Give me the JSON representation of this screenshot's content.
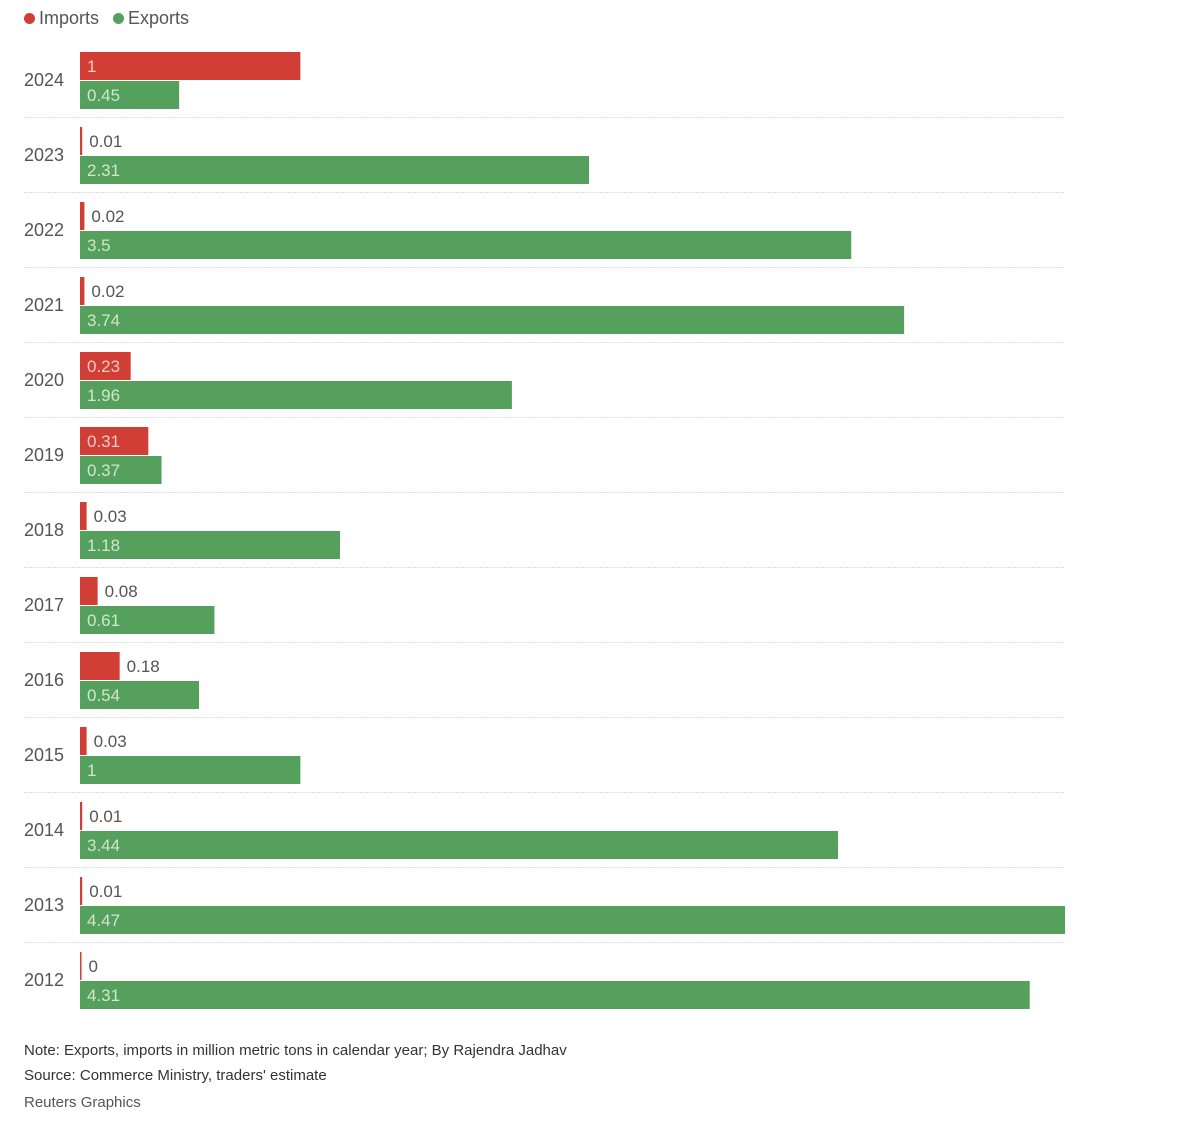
{
  "chart_data": {
    "type": "bar",
    "orientation": "horizontal",
    "title": "",
    "xlabel": "",
    "ylabel": "",
    "units": "million metric tons",
    "categories": [
      "2024",
      "2023",
      "2022",
      "2021",
      "2020",
      "2019",
      "2018",
      "2017",
      "2016",
      "2015",
      "2014",
      "2013",
      "2012"
    ],
    "series": [
      {
        "name": "Imports",
        "color": "#d03e35",
        "values": [
          1,
          0.01,
          0.02,
          0.02,
          0.23,
          0.31,
          0.03,
          0.08,
          0.18,
          0.03,
          0.01,
          0.01,
          0
        ]
      },
      {
        "name": "Exports",
        "color": "#55a05c",
        "values": [
          0.45,
          2.31,
          3.5,
          3.74,
          1.96,
          0.37,
          1.18,
          0.61,
          0.54,
          1,
          3.44,
          4.47,
          4.31
        ]
      }
    ],
    "data_labels": {
      "Imports": [
        "1",
        "0.01",
        "0.02",
        "0.02",
        "0.23",
        "0.31",
        "0.03",
        "0.08",
        "0.18",
        "0.03",
        "0.01",
        "0.01",
        "0"
      ],
      "Exports": [
        "0.45",
        "2.31",
        "3.5",
        "3.74",
        "1.96",
        "0.37",
        "1.18",
        "0.61",
        "0.54",
        "1",
        "3.44",
        "4.47",
        "4.31"
      ]
    },
    "xlim": [
      0,
      4.47
    ],
    "grid": false,
    "legend": "top-left"
  },
  "legend": [
    {
      "label": "Imports",
      "color": "#d03e35"
    },
    {
      "label": "Exports",
      "color": "#55a05c"
    }
  ],
  "footer": {
    "note": "Note: Exports, imports in million metric tons in calendar year; By Rajendra Jadhav",
    "source": "Source: Commerce Ministry, traders' estimate",
    "credit": "Reuters Graphics"
  }
}
